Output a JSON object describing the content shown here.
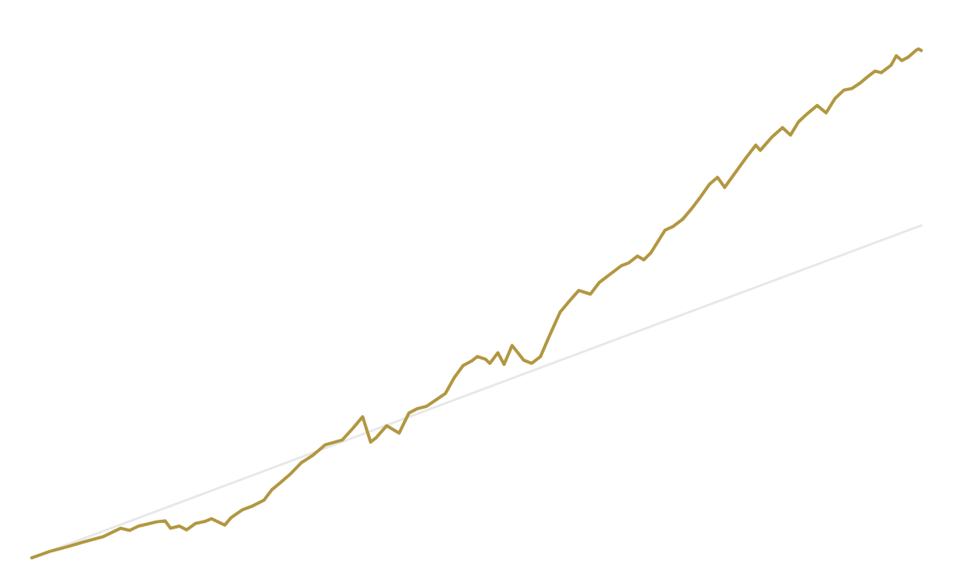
{
  "chart_data": {
    "type": "line",
    "title": "",
    "xlabel": "",
    "ylabel": "",
    "grid": false,
    "legend": "none",
    "xlim": [
      0,
      100
    ],
    "ylim": [
      0,
      100
    ],
    "series": [
      {
        "color": "#b29741",
        "points": [
          [
            0,
            0
          ],
          [
            2,
            1.2
          ],
          [
            4,
            2.1
          ],
          [
            6,
            3.1
          ],
          [
            8,
            4.0
          ],
          [
            10,
            5.6
          ],
          [
            11,
            5.2
          ],
          [
            12,
            6.0
          ],
          [
            13,
            6.4
          ],
          [
            14,
            6.8
          ],
          [
            15,
            7.0
          ],
          [
            15.6,
            5.6
          ],
          [
            16.6,
            6.0
          ],
          [
            17.4,
            5.3
          ],
          [
            18.4,
            6.5
          ],
          [
            19.5,
            6.9
          ],
          [
            20.2,
            7.4
          ],
          [
            21.7,
            6.2
          ],
          [
            22.4,
            7.6
          ],
          [
            23.7,
            9.1
          ],
          [
            24.8,
            9.8
          ],
          [
            26.1,
            10.9
          ],
          [
            27,
            12.9
          ],
          [
            28,
            14.3
          ],
          [
            29.1,
            15.9
          ],
          [
            30.3,
            18.0
          ],
          [
            31.6,
            19.4
          ],
          [
            33,
            21.4
          ],
          [
            34.9,
            22.3
          ],
          [
            36.1,
            24.5
          ],
          [
            37.2,
            26.7
          ],
          [
            38.1,
            21.9
          ],
          [
            38.7,
            22.7
          ],
          [
            39.9,
            25.0
          ],
          [
            41.3,
            23.6
          ],
          [
            42.4,
            27.4
          ],
          [
            43.3,
            28.2
          ],
          [
            44.4,
            28.7
          ],
          [
            46.5,
            31.1
          ],
          [
            47.5,
            34.1
          ],
          [
            48.5,
            36.4
          ],
          [
            49.5,
            37.3
          ],
          [
            50.1,
            38.1
          ],
          [
            51,
            37.6
          ],
          [
            51.5,
            36.8
          ],
          [
            52.4,
            38.8
          ],
          [
            53.1,
            36.6
          ],
          [
            54,
            40.2
          ],
          [
            55.3,
            37.4
          ],
          [
            56.2,
            36.8
          ],
          [
            57.2,
            38.1
          ],
          [
            58.2,
            42.0
          ],
          [
            59.4,
            46.5
          ],
          [
            60.5,
            48.7
          ],
          [
            61.5,
            50.6
          ],
          [
            62.8,
            49.9
          ],
          [
            63.8,
            52.1
          ],
          [
            64.8,
            53.4
          ],
          [
            66.3,
            55.3
          ],
          [
            67.1,
            55.8
          ],
          [
            68.1,
            57.1
          ],
          [
            68.8,
            56.4
          ],
          [
            69.6,
            57.7
          ],
          [
            70.3,
            59.6
          ],
          [
            71.2,
            62.0
          ],
          [
            72.1,
            62.7
          ],
          [
            73.2,
            64.1
          ],
          [
            74.2,
            66.1
          ],
          [
            75.1,
            68.1
          ],
          [
            76.2,
            70.7
          ],
          [
            77.1,
            72.0
          ],
          [
            77.9,
            70.1
          ],
          [
            79.4,
            73.6
          ],
          [
            80.3,
            75.7
          ],
          [
            81.4,
            78.1
          ],
          [
            81.9,
            77.1
          ],
          [
            83.2,
            79.6
          ],
          [
            84.4,
            81.4
          ],
          [
            85.3,
            80.0
          ],
          [
            86.2,
            82.5
          ],
          [
            87.1,
            83.9
          ],
          [
            88.3,
            85.6
          ],
          [
            89.3,
            84.2
          ],
          [
            90.3,
            86.9
          ],
          [
            91.3,
            88.5
          ],
          [
            92.2,
            88.8
          ],
          [
            93.1,
            89.8
          ],
          [
            94.1,
            91.2
          ],
          [
            94.8,
            92.1
          ],
          [
            95.5,
            91.8
          ],
          [
            96.6,
            93.2
          ],
          [
            97.2,
            95.0
          ],
          [
            97.8,
            94.1
          ],
          [
            98.5,
            94.7
          ],
          [
            99.4,
            96.0
          ],
          [
            99.7,
            96.3
          ],
          [
            100,
            96.0
          ]
        ]
      },
      {
        "color": "#e8e8e8",
        "points": [
          [
            0,
            0
          ],
          [
            100,
            62.9
          ]
        ]
      }
    ]
  }
}
